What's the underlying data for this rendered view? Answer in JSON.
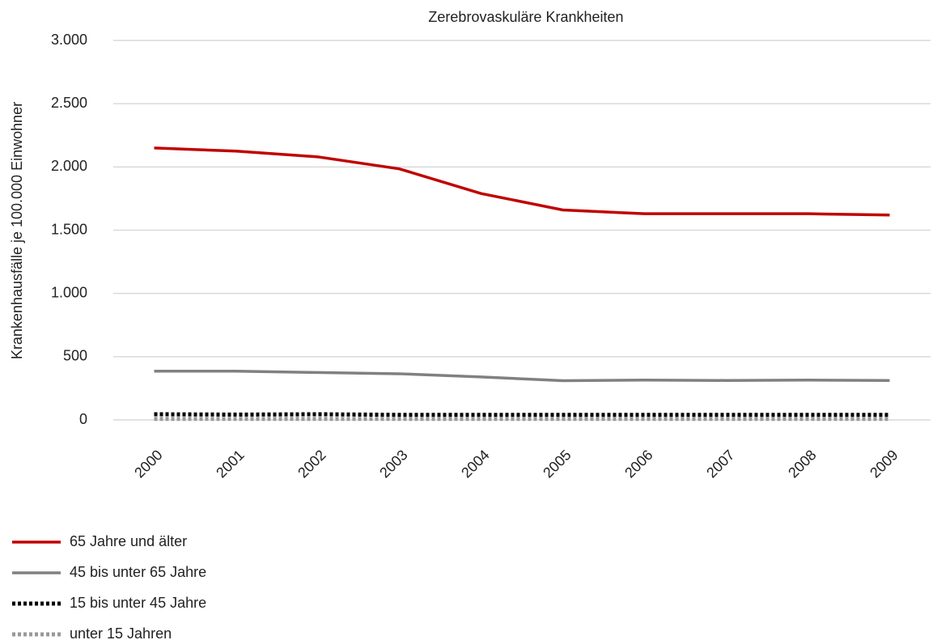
{
  "chart_data": {
    "type": "line",
    "title": "Zerebrovaskuläre Krankheiten",
    "y_label": "Krankenhausfälle je 100.000 Einwohner",
    "categories": [
      "2000",
      "2001",
      "2002",
      "2003",
      "2004",
      "2005",
      "2006",
      "2007",
      "2008",
      "2009"
    ],
    "series": [
      {
        "name": "65 Jahre und älter",
        "color": "#c00000",
        "dash": "solid",
        "values": [
          2150,
          2125,
          2080,
          1985,
          1790,
          1660,
          1630,
          1630,
          1630,
          1620
        ]
      },
      {
        "name": "45 bis unter 65 Jahre",
        "color": "#808080",
        "dash": "solid",
        "values": [
          385,
          385,
          375,
          365,
          340,
          310,
          315,
          312,
          315,
          312
        ]
      },
      {
        "name": "15 bis unter 45 Jahre",
        "color": "#000000",
        "dash": "dotted",
        "values": [
          45,
          42,
          45,
          40,
          40,
          40,
          40,
          40,
          40,
          40
        ]
      },
      {
        "name": "unter 15 Jahren",
        "color": "#999999",
        "dash": "dotted",
        "values": [
          8,
          8,
          8,
          8,
          8,
          8,
          8,
          8,
          8,
          8
        ]
      }
    ],
    "ylim": [
      0,
      3000
    ],
    "yticks": [
      0,
      500,
      {
        "value": 1000,
        "label": "1.000"
      },
      {
        "value": 1500,
        "label": "1.500"
      },
      {
        "value": 2000,
        "label": "2.000"
      },
      {
        "value": 2500,
        "label": "2.500"
      },
      {
        "value": 3000,
        "label": "3.000"
      }
    ],
    "grid": true,
    "legend": "bottom-left"
  }
}
